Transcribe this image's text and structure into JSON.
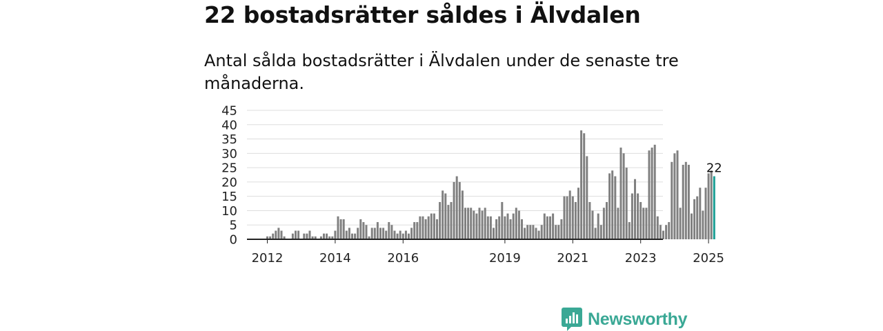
{
  "headline": "22 bostadsrätter såldes i Älvdalen",
  "subtitle": "Antal sålda bostadsrätter i Älvdalen under de senaste tre månaderna.",
  "brand": {
    "name": "Newsworthy",
    "icon": "newsworthy-logo-icon",
    "color": "#3aa895"
  },
  "chart_data": {
    "type": "bar",
    "title": "",
    "xlabel": "",
    "ylabel": "",
    "ylim": [
      0,
      45
    ],
    "yticks": [
      0,
      5,
      10,
      15,
      20,
      25,
      30,
      35,
      40,
      45
    ],
    "grid": true,
    "legend": "none",
    "bar_color": "#808080",
    "highlight_color": "#1a9e94",
    "start": "2012-01",
    "x_ticks": [
      {
        "label": "2012",
        "month": "2012-01"
      },
      {
        "label": "2014",
        "month": "2014-01"
      },
      {
        "label": "2016",
        "month": "2016-01"
      },
      {
        "label": "2019",
        "month": "2019-01"
      },
      {
        "label": "2021",
        "month": "2021-01"
      },
      {
        "label": "2023",
        "month": "2023-01"
      },
      {
        "label": "2025",
        "month": "2025-01"
      }
    ],
    "highlight_label": "22",
    "values": [
      1,
      1,
      2,
      3,
      4,
      3,
      1,
      0,
      0,
      2,
      3,
      3,
      0,
      2,
      2,
      3,
      1,
      1,
      0,
      1,
      2,
      2,
      1,
      1,
      3,
      8,
      7,
      7,
      3,
      4,
      2,
      2,
      4,
      7,
      6,
      5,
      1,
      4,
      4,
      6,
      4,
      4,
      3,
      6,
      5,
      3,
      2,
      3,
      2,
      3,
      2,
      4,
      6,
      6,
      8,
      8,
      7,
      8,
      9,
      9,
      7,
      13,
      17,
      16,
      12,
      13,
      20,
      22,
      20,
      17,
      11,
      11,
      11,
      10,
      9,
      11,
      10,
      11,
      8,
      8,
      4,
      7,
      8,
      13,
      8,
      9,
      7,
      9,
      11,
      10,
      7,
      4,
      5,
      5,
      5,
      4,
      3,
      5,
      9,
      8,
      8,
      9,
      5,
      5,
      7,
      15,
      15,
      17,
      15,
      13,
      18,
      38,
      37,
      29,
      13,
      10,
      4,
      9,
      5,
      11,
      13,
      23,
      24,
      22,
      11,
      32,
      30,
      25,
      6,
      16,
      21,
      16,
      13,
      11,
      11,
      31,
      32,
      33,
      8,
      5,
      3,
      5,
      6,
      27,
      30,
      31,
      11,
      26,
      27,
      26,
      9,
      14,
      15,
      18,
      10,
      18,
      23,
      24,
      22
    ]
  }
}
